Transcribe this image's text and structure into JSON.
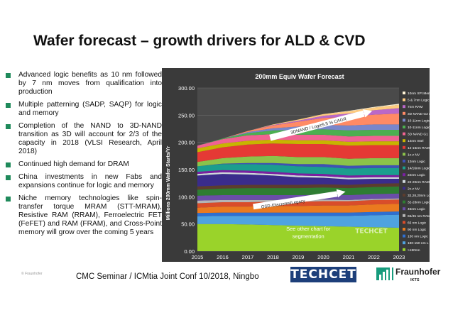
{
  "slide": {
    "title": "Wafer forecast – growth drivers for ALD & CVD",
    "bullets": [
      "Advanced logic benefits as 10 nm followed by 7 nm moves from qualification into production",
      "Multiple patterning (SADP, SAQP) for logic and memory",
      "Completion of the NAND to 3D-NAND transition as 3D will account for 2/3 of the capacity in 2018 (VLSI Research, April 2018)",
      "Continued high demand for DRAM",
      "China investments in new Fabs and expansions continue for logic and memory",
      "Niche memory technologies like spin-transfer torque MRAM (STT-MRAM), Resistive RAM (RRAM), Ferroelectric FET (FeFET) and RAM (FRAM), and Cross-Point memory will grow over the coming 5 years"
    ],
    "copyright": "© Fraunhofer",
    "footer": "CMC Seminar / ICMtia Joint Conf 10/2018, Ningbo",
    "logo_techcet": "TECHCET",
    "logo_fraunhofer": "Fraunhofer",
    "logo_fraunhofer_sub": "IKTS"
  },
  "chart_data": {
    "type": "area",
    "stacked": true,
    "title": "200mm Equiv Wafer Forecast",
    "xlabel": "",
    "ylabel": "Millions 200mm Wafer Starts/Yr",
    "x": [
      2015,
      2016,
      2017,
      2018,
      2019,
      2020,
      2021,
      2022,
      2023
    ],
    "ylim": [
      0,
      300
    ],
    "yticks": [
      "0.00",
      "50.00",
      "100.00",
      "150.00",
      "200.00",
      "250.00",
      "300.00"
    ],
    "legend_position": "right",
    "series": [
      {
        "name": ">180nm",
        "color": "#9ad32a",
        "values": [
          50,
          50,
          49,
          48,
          47,
          46,
          45,
          44,
          43
        ]
      },
      {
        "name": "180-150 nm L",
        "color": "#4fa3e0",
        "values": [
          14,
          15,
          16,
          17,
          18,
          19,
          20,
          22,
          24
        ]
      },
      {
        "name": "130 nm Logic",
        "color": "#2f6fd0",
        "values": [
          6,
          6,
          6,
          6,
          6,
          6,
          6,
          6,
          6
        ]
      },
      {
        "name": "90 nm Logic",
        "color": "#ea7a1f",
        "values": [
          10,
          11,
          11,
          12,
          12,
          13,
          13,
          14,
          14
        ]
      },
      {
        "name": "65 nm Logic",
        "color": "#d94d2a",
        "values": [
          8,
          8,
          8,
          8,
          8,
          8,
          8,
          8,
          8
        ]
      },
      {
        "name": "65/45 nm RAM",
        "color": "#b5b5b5",
        "values": [
          5,
          4,
          4,
          3,
          3,
          3,
          2,
          2,
          2
        ]
      },
      {
        "name": "45nm Logic",
        "color": "#6a4ea8",
        "values": [
          9,
          9,
          9,
          9,
          9,
          9,
          9,
          9,
          9
        ]
      },
      {
        "name": "32-28nm Logic",
        "color": "#2e7d32",
        "values": [
          11,
          12,
          13,
          13,
          13,
          13,
          13,
          13,
          13
        ]
      },
      {
        "name": "32,28,20nm Logic",
        "color": "#5c3d2e",
        "values": [
          6,
          6,
          6,
          6,
          6,
          6,
          6,
          6,
          6
        ]
      },
      {
        "name": "2x-z NV",
        "color": "#3a2c8c",
        "values": [
          20,
          21,
          19,
          17,
          14,
          12,
          10,
          9,
          8
        ]
      },
      {
        "name": "22-20nm RAM",
        "color": "#cfd8dc",
        "values": [
          3,
          3,
          3,
          3,
          3,
          3,
          3,
          3,
          3
        ]
      },
      {
        "name": "22nm Logic",
        "color": "#7b1fa2",
        "values": [
          4,
          4,
          4,
          4,
          4,
          4,
          4,
          4,
          4
        ]
      },
      {
        "name": "14/16nm Logic",
        "color": "#1b9e8e",
        "values": [
          10,
          11,
          12,
          13,
          13,
          13,
          13,
          13,
          13
        ]
      },
      {
        "name": "12nm Logic",
        "color": "#3f51b5",
        "values": [
          0,
          1,
          2,
          3,
          4,
          5,
          5,
          5,
          5
        ]
      },
      {
        "name": "1x-z NV",
        "color": "#8bc34a",
        "values": [
          8,
          10,
          12,
          13,
          13,
          13,
          13,
          13,
          13
        ]
      },
      {
        "name": "14-16nm RAM",
        "color": "#e53935",
        "values": [
          18,
          20,
          22,
          23,
          24,
          24,
          24,
          24,
          24
        ]
      },
      {
        "name": "14nm Intel",
        "color": "#c8b400",
        "values": [
          7,
          7,
          7,
          7,
          7,
          7,
          7,
          7,
          7
        ]
      },
      {
        "name": "3D NAND G1",
        "color": "#f06292",
        "values": [
          5,
          8,
          10,
          10,
          10,
          10,
          10,
          10,
          10
        ]
      },
      {
        "name": "10-11nm Logic",
        "color": "#4caf50",
        "values": [
          0,
          1,
          4,
          7,
          9,
          10,
          11,
          11,
          11
        ]
      },
      {
        "name": "10-11nm Logic",
        "color": "#7986cb",
        "values": [
          0,
          0,
          2,
          4,
          6,
          8,
          9,
          10,
          10
        ]
      },
      {
        "name": "3D NAND G2 etc",
        "color": "#ff8a65",
        "values": [
          0,
          0,
          2,
          5,
          9,
          13,
          16,
          18,
          20
        ]
      },
      {
        "name": "7nm RAM",
        "color": "#ba68c8",
        "values": [
          0,
          0,
          0,
          1,
          2,
          4,
          6,
          8,
          10
        ]
      },
      {
        "name": "5 & 7nm Logic",
        "color": "#ffcc80",
        "values": [
          0,
          0,
          0,
          1,
          2,
          3,
          4,
          5,
          6
        ]
      },
      {
        "name": "10nm XPt Memory",
        "color": "#fff3d6",
        "values": [
          0,
          0,
          0,
          0,
          0,
          0,
          1,
          1,
          2
        ]
      }
    ],
    "annotations": [
      {
        "text": "3DNAND / Logic5.5 % CAGR",
        "x": 2019.8,
        "y": 232
      },
      {
        "text": "OSD /Discretes/Legacy",
        "x": 2018.4,
        "y": 87
      },
      {
        "text": "See other chart for",
        "x": 2019.4,
        "y": 38
      },
      {
        "text": "segmentation",
        "x": 2019.4,
        "y": 24
      }
    ],
    "watermark": "TECHCET"
  }
}
